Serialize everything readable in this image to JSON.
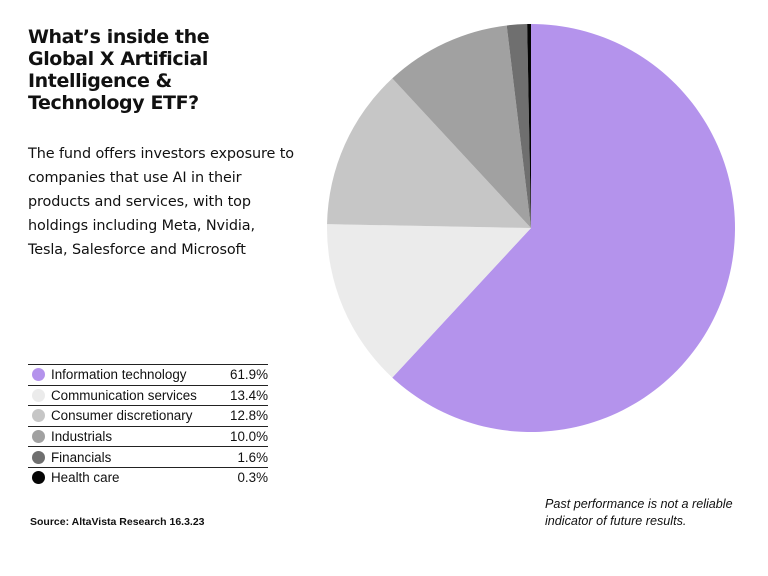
{
  "title": "What’s inside the Global X Artificial Intelligence & Technology ETF?",
  "subtitle": "The fund offers investors exposure to companies that use AI in their products and services, with top holdings including Meta, Nvidia, Tesla, Salesforce and Microsoft",
  "source": "Source: AltaVista Research 16.3.23",
  "disclaimer": "Past performance is not a reliable indicator of future results.",
  "chart_data": {
    "type": "pie",
    "title": "What’s inside the Global X Artificial Intelligence & Technology ETF?",
    "start": "12 o'clock",
    "direction": "clockwise",
    "legend_position": "bottom-left",
    "slices": [
      {
        "label": "Information technology",
        "value": 61.9,
        "display": "61.9%",
        "color": "#b493ec"
      },
      {
        "label": "Communication services",
        "value": 13.4,
        "display": "13.4%",
        "color": "#ebebeb"
      },
      {
        "label": "Consumer discretionary",
        "value": 12.8,
        "display": "12.8%",
        "color": "#c6c6c6"
      },
      {
        "label": "Industrials",
        "value": 10.0,
        "display": "10.0%",
        "color": "#a1a1a1"
      },
      {
        "label": "Financials",
        "value": 1.6,
        "display": "1.6%",
        "color": "#6f6f6f"
      },
      {
        "label": "Health care",
        "value": 0.3,
        "display": "0.3%",
        "color": "#050505"
      }
    ]
  }
}
